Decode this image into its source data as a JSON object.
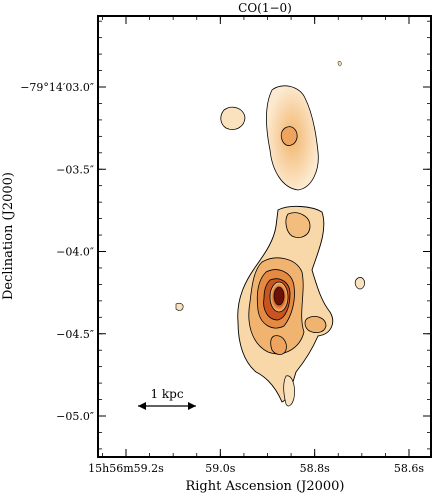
{
  "title": "CO(1−0)",
  "xlabel": "Right Ascension (J2000)",
  "ylabel": "Declination (J2000)",
  "x_ticks": [
    {
      "label": "15h56m59.2s",
      "ra_sec": 59.2
    },
    {
      "label": "59.0s",
      "ra_sec": 59.0
    },
    {
      "label": "58.8s",
      "ra_sec": 58.8
    },
    {
      "label": "58.6s",
      "ra_sec": 58.6
    }
  ],
  "y_ticks": [
    {
      "label": "−79°14′03.0″",
      "dec_arcsec": 3.0
    },
    {
      "label": "−03.5″",
      "dec_arcsec": 3.5
    },
    {
      "label": "−04.0″",
      "dec_arcsec": 4.0
    },
    {
      "label": "−04.5″",
      "dec_arcsec": 4.5
    },
    {
      "label": "−05.0″",
      "dec_arcsec": 5.0
    }
  ],
  "scalebar": {
    "label": "1 kpc"
  },
  "colors": {
    "peak": "#8a1a0a",
    "mid": "#d8682a",
    "low": "#f6c37a",
    "faint": "#fbe8c8",
    "contour": "#000000"
  }
}
